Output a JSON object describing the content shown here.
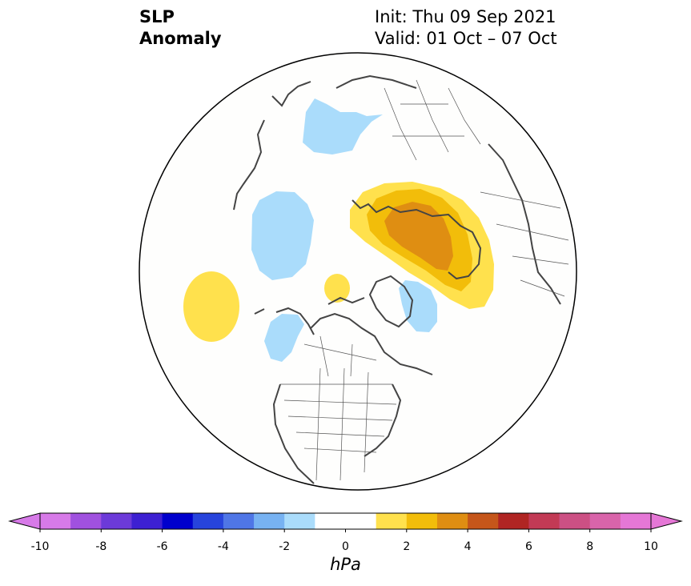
{
  "title": {
    "left_line1": "SLP",
    "left_line2": "Anomaly",
    "init": "Init: Thu 09 Sep 2021",
    "valid": "Valid: 01 Oct – 07 Oct"
  },
  "colorbar": {
    "unit_label": "hPa",
    "ticks": [
      "-10",
      "-8",
      "-6",
      "-4",
      "-2",
      "0",
      "2",
      "4",
      "6",
      "8",
      "10"
    ],
    "bins": [
      {
        "from": -10,
        "to": -9,
        "color": "#d77ae8"
      },
      {
        "from": -9,
        "to": -8,
        "color": "#a051df"
      },
      {
        "from": -8,
        "to": -7,
        "color": "#6c3ad9"
      },
      {
        "from": -7,
        "to": -6,
        "color": "#3d20d2"
      },
      {
        "from": -6,
        "to": -5,
        "color": "#0000cd"
      },
      {
        "from": -5,
        "to": -4,
        "color": "#2744dc"
      },
      {
        "from": -4,
        "to": -3,
        "color": "#4f76e6"
      },
      {
        "from": -3,
        "to": -2,
        "color": "#77b2f2"
      },
      {
        "from": -2,
        "to": -1,
        "color": "#aadcfb"
      },
      {
        "from": -1,
        "to": 0,
        "color": "#ffffff"
      },
      {
        "from": 0,
        "to": 1,
        "color": "#ffffff"
      },
      {
        "from": 1,
        "to": 2,
        "color": "#ffe14d"
      },
      {
        "from": 2,
        "to": 3,
        "color": "#f2bd0a"
      },
      {
        "from": 3,
        "to": 4,
        "color": "#df8e12"
      },
      {
        "from": 4,
        "to": 5,
        "color": "#c5561a"
      },
      {
        "from": 5,
        "to": 6,
        "color": "#b02523"
      },
      {
        "from": 6,
        "to": 7,
        "color": "#c23a55"
      },
      {
        "from": 7,
        "to": 8,
        "color": "#cc5084"
      },
      {
        "from": 8,
        "to": 9,
        "color": "#d964aa"
      },
      {
        "from": 9,
        "to": 10,
        "color": "#e577d6"
      }
    ],
    "extend_low_color": "#d77ae8",
    "extend_high_color": "#e577d6"
  },
  "map": {
    "projection": "north-polar-stereographic",
    "background_color": "#fefefd",
    "coastline_color": "#444444",
    "anomaly_regions": [
      {
        "name": "scandinavia-negative",
        "level": "-2 to -1"
      },
      {
        "name": "west-siberia-positive",
        "level": "1 to 4"
      },
      {
        "name": "east-siberia-negative",
        "level": "-2 to -1"
      },
      {
        "name": "north-pacific-positive",
        "level": "1 to 2"
      },
      {
        "name": "gulf-of-alaska-negative",
        "level": "-2 to -1"
      },
      {
        "name": "baffin-bay-negative",
        "level": "-2 to -1"
      },
      {
        "name": "arctic-ocean-positive",
        "level": "1 to 2"
      }
    ]
  }
}
